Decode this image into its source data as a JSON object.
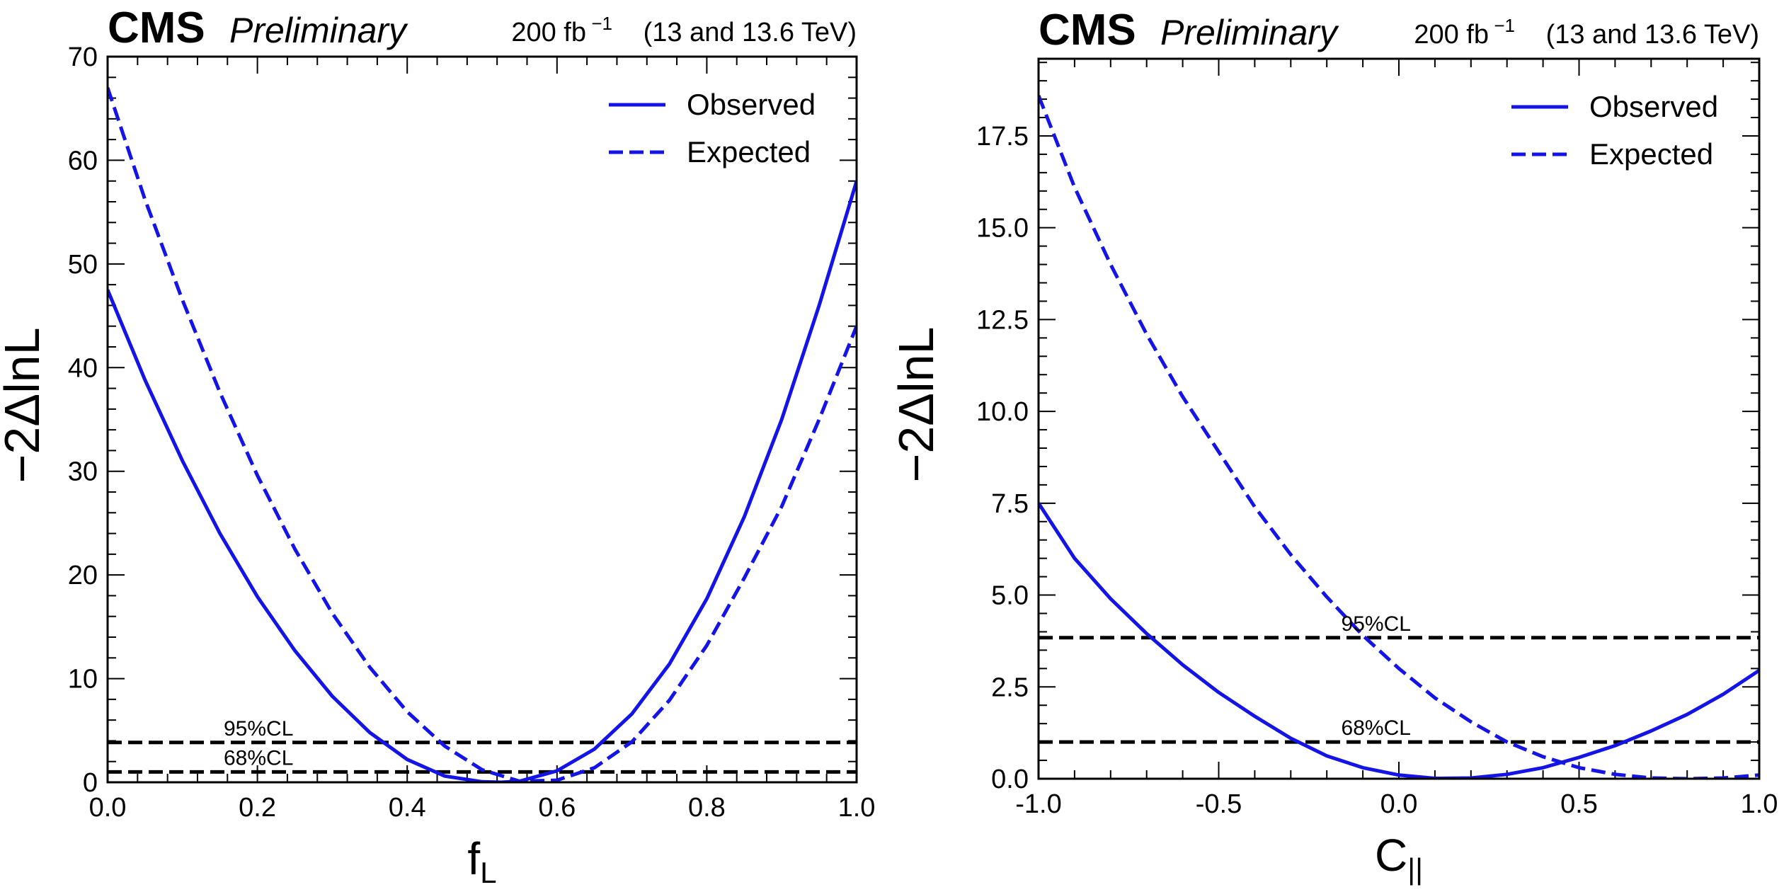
{
  "chart_data": [
    {
      "type": "line",
      "experiment": "CMS",
      "status": "Preliminary",
      "lumi_prefix": "200 fb",
      "lumi_exp": "−1",
      "energy": "(13 and 13.6 TeV)",
      "xlabel": "f",
      "xlabel_sub": "L",
      "ylabel": "−2ΔlnL",
      "xlim": [
        0.0,
        1.0
      ],
      "ylim": [
        0,
        70
      ],
      "xticks": [
        0.0,
        0.2,
        0.4,
        0.6,
        0.8,
        1.0
      ],
      "xtick_labels": [
        "0.0",
        "0.2",
        "0.4",
        "0.6",
        "0.8",
        "1.0"
      ],
      "yticks": [
        0,
        10,
        20,
        30,
        40,
        50,
        60,
        70
      ],
      "ytick_labels": [
        "0",
        "10",
        "20",
        "30",
        "40",
        "50",
        "60",
        "70"
      ],
      "legend": {
        "position": "top-right",
        "entries": [
          "Observed",
          "Expected"
        ]
      },
      "series": [
        {
          "name": "Observed",
          "style": "solid",
          "color": "#1414e6",
          "x": [
            0.0,
            0.05,
            0.1,
            0.15,
            0.2,
            0.25,
            0.3,
            0.35,
            0.4,
            0.45,
            0.5,
            0.525,
            0.55,
            0.6,
            0.65,
            0.7,
            0.75,
            0.8,
            0.85,
            0.9,
            0.95,
            1.0
          ],
          "y": [
            47.5,
            38.8,
            31.0,
            24.0,
            17.9,
            12.7,
            8.3,
            4.8,
            2.2,
            0.6,
            0.05,
            0.0,
            0.1,
            1.1,
            3.2,
            6.6,
            11.4,
            17.7,
            25.6,
            35.0,
            46.0,
            58.0
          ]
        },
        {
          "name": "Expected",
          "style": "dashed",
          "color": "#1414e6",
          "x": [
            0.0,
            0.05,
            0.1,
            0.15,
            0.2,
            0.25,
            0.3,
            0.35,
            0.4,
            0.45,
            0.5,
            0.55,
            0.6,
            0.65,
            0.7,
            0.75,
            0.8,
            0.85,
            0.9,
            0.95,
            1.0
          ],
          "y": [
            67.0,
            56.2,
            46.5,
            37.6,
            29.6,
            22.5,
            16.3,
            11.1,
            6.8,
            3.5,
            1.2,
            0.1,
            0.2,
            1.4,
            3.9,
            7.9,
            13.2,
            19.7,
            26.6,
            35.0,
            44.0
          ]
        }
      ],
      "cl_lines": [
        {
          "label": "95%CL",
          "value": 3.84,
          "label_x": 0.155
        },
        {
          "label": "68%CL",
          "value": 1.0,
          "label_x": 0.155
        }
      ]
    },
    {
      "type": "line",
      "experiment": "CMS",
      "status": "Preliminary",
      "lumi_prefix": "200 fb",
      "lumi_exp": "−1",
      "energy": "(13 and 13.6 TeV)",
      "xlabel": "C",
      "xlabel_sub": "||",
      "ylabel": "−2ΔlnL",
      "xlim": [
        -1.0,
        1.0
      ],
      "ylim": [
        0,
        19.6
      ],
      "xticks": [
        -1.0,
        -0.5,
        0.0,
        0.5,
        1.0
      ],
      "xtick_labels": [
        "-1.0",
        "-0.5",
        "0.0",
        "0.5",
        "1.0"
      ],
      "yticks": [
        0.0,
        2.5,
        5.0,
        7.5,
        10.0,
        12.5,
        15.0,
        17.5
      ],
      "ytick_labels": [
        "0.0",
        "2.5",
        "5.0",
        "7.5",
        "10.0",
        "12.5",
        "15.0",
        "17.5"
      ],
      "legend": {
        "position": "top-right",
        "entries": [
          "Observed",
          "Expected"
        ]
      },
      "series": [
        {
          "name": "Observed",
          "style": "solid",
          "color": "#1414e6",
          "x": [
            -1.0,
            -0.9,
            -0.8,
            -0.7,
            -0.6,
            -0.5,
            -0.4,
            -0.3,
            -0.2,
            -0.1,
            0.0,
            0.1,
            0.2,
            0.3,
            0.4,
            0.5,
            0.6,
            0.7,
            0.8,
            0.9,
            1.0
          ],
          "y": [
            7.5,
            6.0,
            4.9,
            3.95,
            3.1,
            2.35,
            1.7,
            1.1,
            0.62,
            0.3,
            0.1,
            0.01,
            0.02,
            0.12,
            0.3,
            0.58,
            0.9,
            1.3,
            1.75,
            2.3,
            2.95
          ]
        },
        {
          "name": "Expected",
          "style": "dashed",
          "color": "#1414e6",
          "x": [
            -1.0,
            -0.9,
            -0.8,
            -0.7,
            -0.6,
            -0.5,
            -0.4,
            -0.3,
            -0.2,
            -0.1,
            0.0,
            0.1,
            0.2,
            0.3,
            0.4,
            0.5,
            0.6,
            0.7,
            0.8,
            0.9,
            1.0
          ],
          "y": [
            18.6,
            16.1,
            14.0,
            12.1,
            10.4,
            8.9,
            7.4,
            6.1,
            4.95,
            3.9,
            3.0,
            2.2,
            1.55,
            1.0,
            0.6,
            0.3,
            0.12,
            0.02,
            0.0,
            0.02,
            0.1
          ]
        }
      ],
      "cl_lines": [
        {
          "label": "95%CL",
          "value": 3.84,
          "label_x": 0.42
        },
        {
          "label": "68%CL",
          "value": 1.0,
          "label_x": 0.42
        }
      ]
    }
  ]
}
